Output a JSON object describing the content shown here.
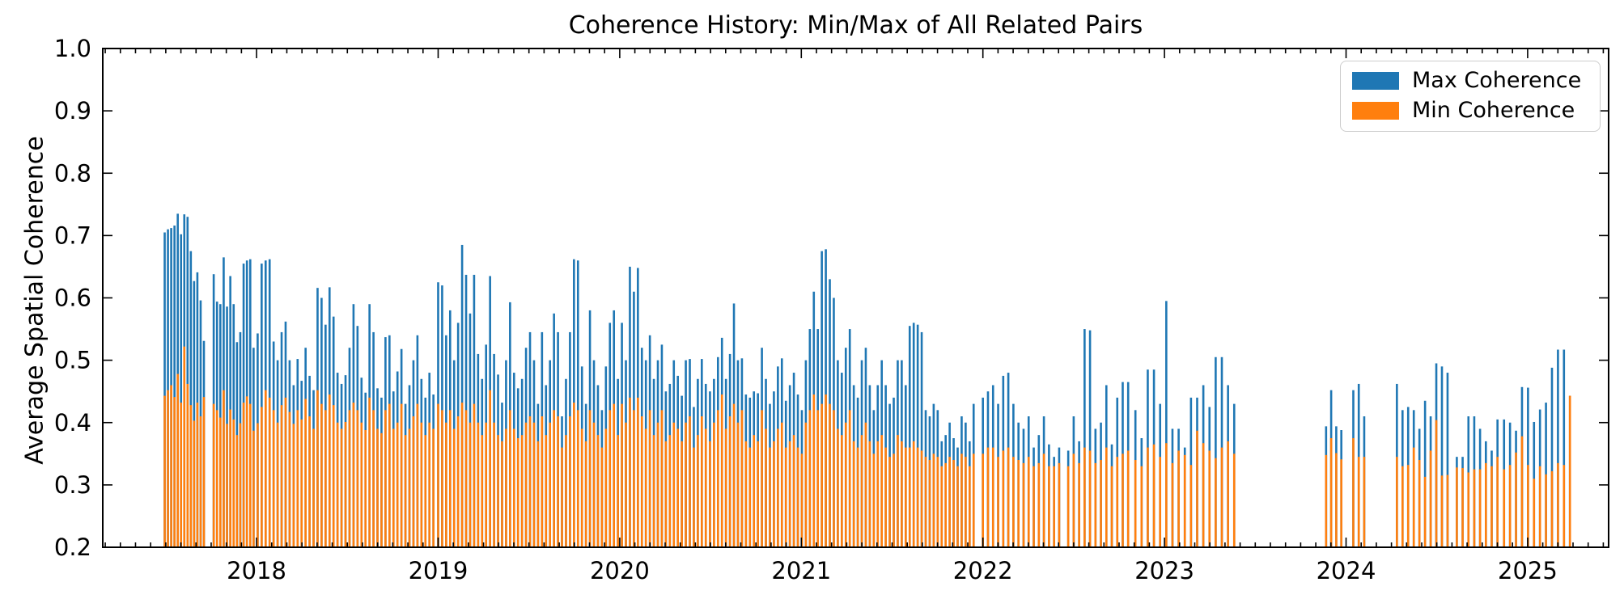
{
  "chart_data": {
    "type": "bar",
    "title": "Coherence History: Min/Max of All Related Pairs",
    "xlabel": "",
    "ylabel": "Average Spatial Coherence",
    "xlim": [
      2017.153,
      2025.446
    ],
    "ylim": [
      0.2,
      1.0
    ],
    "x_ticks": [
      2018,
      2019,
      2020,
      2021,
      2022,
      2023,
      2024,
      2025
    ],
    "y_ticks": [
      0.2,
      0.3,
      0.4,
      0.5,
      0.6,
      0.7,
      0.8,
      0.9,
      1.0
    ],
    "minor_x_tick_interval_years": 0.083333,
    "grid": false,
    "legend_position": "upper right",
    "background_color": "#ffffff",
    "spine_color": "#000000",
    "series": [
      {
        "name": "Max Coherence",
        "color": "#1f77b4"
      },
      {
        "name": "Min Coherence",
        "color": "#ff7f0e"
      }
    ],
    "segments": [
      {
        "t0": 2017.494,
        "dt": 0.018,
        "max": [
          0.705,
          0.71,
          0.712,
          0.716,
          0.735,
          0.702,
          0.734,
          0.73,
          0.675,
          0.627,
          0.641,
          0.596,
          0.531
        ],
        "min": [
          0.443,
          0.452,
          0.46,
          0.441,
          0.478,
          0.432,
          0.522,
          0.462,
          0.428,
          0.403,
          0.432,
          0.41,
          0.441
        ]
      },
      {
        "t0": 2017.764,
        "dt": 0.0183,
        "max": [
          0.638,
          0.594,
          0.59,
          0.665,
          0.586,
          0.635,
          0.59,
          0.529,
          0.545,
          0.655,
          0.66,
          0.662,
          0.52
        ],
        "min": [
          0.43,
          0.42,
          0.408,
          0.452,
          0.398,
          0.421,
          0.405,
          0.38,
          0.399,
          0.432,
          0.442,
          0.43,
          0.387
        ]
      },
      {
        "t0": 2018.006,
        "dt": 0.022,
        "max": [
          0.543,
          0.655,
          0.66,
          0.662,
          0.53,
          0.5,
          0.545,
          0.562,
          0.5,
          0.46,
          0.502,
          0.467,
          0.52,
          0.475,
          0.452,
          0.616,
          0.6,
          0.557,
          0.617,
          0.57,
          0.48,
          0.462,
          0.476
        ],
        "min": [
          0.399,
          0.425,
          0.452,
          0.44,
          0.42,
          0.4,
          0.428,
          0.44,
          0.417,
          0.398,
          0.42,
          0.405,
          0.438,
          0.41,
          0.39,
          0.452,
          0.43,
          0.42,
          0.445,
          0.428,
          0.4,
          0.39,
          0.401
        ]
      },
      {
        "t0": 2018.512,
        "dt": 0.022,
        "max": [
          0.52,
          0.59,
          0.555,
          0.472,
          0.448,
          0.59,
          0.545,
          0.455,
          0.44,
          0.537,
          0.54,
          0.45,
          0.482,
          0.518,
          0.43,
          0.46,
          0.5,
          0.54,
          0.47,
          0.44,
          0.48,
          0.445
        ],
        "min": [
          0.42,
          0.432,
          0.42,
          0.4,
          0.388,
          0.44,
          0.42,
          0.39,
          0.383,
          0.42,
          0.43,
          0.39,
          0.4,
          0.43,
          0.38,
          0.39,
          0.41,
          0.43,
          0.4,
          0.38,
          0.4,
          0.39
        ]
      },
      {
        "t0": 2019.0,
        "dt": 0.022,
        "max": [
          0.625,
          0.62,
          0.54,
          0.58,
          0.5,
          0.56,
          0.685,
          0.637,
          0.575,
          0.637,
          0.51,
          0.47,
          0.525,
          0.635,
          0.51,
          0.477,
          0.432,
          0.5,
          0.593,
          0.48,
          0.455,
          0.47,
          0.52
        ],
        "min": [
          0.43,
          0.42,
          0.4,
          0.42,
          0.39,
          0.41,
          0.432,
          0.42,
          0.4,
          0.43,
          0.4,
          0.38,
          0.4,
          0.452,
          0.4,
          0.38,
          0.37,
          0.39,
          0.42,
          0.39,
          0.375,
          0.38,
          0.4
        ]
      },
      {
        "t0": 2019.506,
        "dt": 0.022,
        "max": [
          0.545,
          0.5,
          0.43,
          0.545,
          0.46,
          0.5,
          0.575,
          0.545,
          0.41,
          0.47,
          0.545,
          0.662,
          0.66,
          0.49,
          0.43,
          0.58,
          0.5,
          0.46,
          0.42,
          0.49,
          0.56,
          0.58
        ],
        "min": [
          0.41,
          0.4,
          0.37,
          0.41,
          0.38,
          0.4,
          0.42,
          0.41,
          0.36,
          0.38,
          0.41,
          0.432,
          0.42,
          0.39,
          0.37,
          0.42,
          0.4,
          0.38,
          0.36,
          0.39,
          0.42,
          0.43
        ]
      },
      {
        "t0": 2019.99,
        "dt": 0.022,
        "max": [
          0.47,
          0.56,
          0.5,
          0.65,
          0.61,
          0.648,
          0.52,
          0.5,
          0.54,
          0.47,
          0.5,
          0.525,
          0.45,
          0.462,
          0.5,
          0.475,
          0.443,
          0.5,
          0.502,
          0.425,
          0.47,
          0.502,
          0.462
        ],
        "min": [
          0.38,
          0.43,
          0.4,
          0.44,
          0.42,
          0.44,
          0.41,
          0.39,
          0.42,
          0.38,
          0.4,
          0.42,
          0.37,
          0.38,
          0.4,
          0.39,
          0.37,
          0.4,
          0.41,
          0.36,
          0.38,
          0.41,
          0.39
        ]
      },
      {
        "t0": 2020.497,
        "dt": 0.022,
        "max": [
          0.45,
          0.47,
          0.505,
          0.536,
          0.47,
          0.51,
          0.591,
          0.5,
          0.503,
          0.445,
          0.44,
          0.45,
          0.447,
          0.52,
          0.47,
          0.43,
          0.45,
          0.49,
          0.503,
          0.435,
          0.46,
          0.48
        ],
        "min": [
          0.37,
          0.4,
          0.42,
          0.445,
          0.39,
          0.41,
          0.43,
          0.4,
          0.42,
          0.37,
          0.36,
          0.38,
          0.37,
          0.42,
          0.39,
          0.36,
          0.37,
          0.39,
          0.4,
          0.36,
          0.37,
          0.38
        ]
      },
      {
        "t0": 2020.981,
        "dt": 0.022,
        "max": [
          0.445,
          0.42,
          0.5,
          0.55,
          0.61,
          0.55,
          0.675,
          0.678,
          0.63,
          0.6,
          0.5,
          0.48,
          0.52,
          0.55,
          0.46,
          0.44,
          0.5,
          0.52,
          0.46,
          0.42,
          0.46,
          0.5,
          0.46
        ],
        "min": [
          0.36,
          0.35,
          0.4,
          0.42,
          0.445,
          0.42,
          0.43,
          0.445,
          0.43,
          0.42,
          0.39,
          0.38,
          0.4,
          0.42,
          0.37,
          0.36,
          0.38,
          0.4,
          0.37,
          0.35,
          0.37,
          0.38,
          0.36
        ]
      },
      {
        "t0": 2021.487,
        "dt": 0.022,
        "max": [
          0.43,
          0.44,
          0.5,
          0.5,
          0.46,
          0.555,
          0.56,
          0.557,
          0.545,
          0.42,
          0.41,
          0.43,
          0.42,
          0.37,
          0.38,
          0.4,
          0.375,
          0.36,
          0.41,
          0.4,
          0.37,
          0.43
        ],
        "min": [
          0.345,
          0.35,
          0.38,
          0.37,
          0.36,
          0.36,
          0.37,
          0.36,
          0.355,
          0.345,
          0.34,
          0.35,
          0.345,
          0.33,
          0.335,
          0.345,
          0.34,
          0.33,
          0.35,
          0.345,
          0.33,
          0.35
        ]
      },
      {
        "t0": 2022.0,
        "dt": 0.028,
        "max": [
          0.44,
          0.45,
          0.46,
          0.43,
          0.475,
          0.48,
          0.43,
          0.4,
          0.39,
          0.41,
          0.36,
          0.38,
          0.41,
          0.365,
          0.345,
          0.36
        ],
        "min": [
          0.35,
          0.36,
          0.36,
          0.345,
          0.355,
          0.36,
          0.345,
          0.34,
          0.335,
          0.345,
          0.33,
          0.335,
          0.35,
          0.33,
          0.33,
          0.335
        ]
      },
      {
        "t0": 2022.47,
        "dt": 0.03,
        "max": [
          0.355,
          0.41,
          0.37,
          0.55,
          0.548,
          0.39,
          0.4,
          0.46,
          0.365,
          0.44,
          0.465,
          0.465
        ],
        "min": [
          0.33,
          0.35,
          0.335,
          0.36,
          0.355,
          0.335,
          0.34,
          0.36,
          0.33,
          0.345,
          0.35,
          0.355
        ]
      },
      {
        "t0": 2022.84,
        "dt": 0.034,
        "max": [
          0.42,
          0.375,
          0.485,
          0.485,
          0.43,
          0.595,
          0.39,
          0.39,
          0.36,
          0.44,
          0.44,
          0.46,
          0.425,
          0.505,
          0.505,
          0.46,
          0.43
        ],
        "min": [
          0.34,
          0.33,
          0.36,
          0.365,
          0.345,
          0.367,
          0.335,
          0.355,
          0.348,
          0.332,
          0.387,
          0.367,
          0.355,
          0.343,
          0.36,
          0.37,
          0.35
        ]
      },
      {
        "t0": 2023.89,
        "dt": 0.028,
        "max": [
          0.394,
          0.452,
          0.394,
          0.388
        ],
        "min": [
          0.348,
          0.375,
          0.351,
          0.341
        ]
      },
      {
        "t0": 2024.04,
        "dt": 0.03,
        "max": [
          0.452,
          0.462,
          0.41
        ],
        "min": [
          0.375,
          0.345,
          0.345
        ]
      },
      {
        "t0": 2024.28,
        "dt": 0.031,
        "max": [
          0.462,
          0.42,
          0.425,
          0.42,
          0.39,
          0.435,
          0.41,
          0.495,
          0.49,
          0.48
        ],
        "min": [
          0.345,
          0.33,
          0.332,
          0.36,
          0.34,
          0.313,
          0.355,
          0.404,
          0.315,
          0.316
        ]
      },
      {
        "t0": 2024.61,
        "dt": 0.032,
        "max": [
          0.345,
          0.345,
          0.41,
          0.41,
          0.39,
          0.37,
          0.355,
          0.405
        ],
        "min": [
          0.328,
          0.327,
          0.32,
          0.325,
          0.325,
          0.335,
          0.33,
          0.345
        ]
      },
      {
        "t0": 2024.87,
        "dt": 0.033,
        "max": [
          0.405,
          0.4,
          0.387,
          0.457,
          0.456,
          0.401,
          0.421,
          0.432,
          0.488,
          0.517,
          0.517,
          0.443
        ],
        "min": [
          0.325,
          0.332,
          0.352,
          0.378,
          0.332,
          0.31,
          0.33,
          0.317,
          0.322,
          0.335,
          0.332,
          0.443
        ]
      }
    ]
  }
}
